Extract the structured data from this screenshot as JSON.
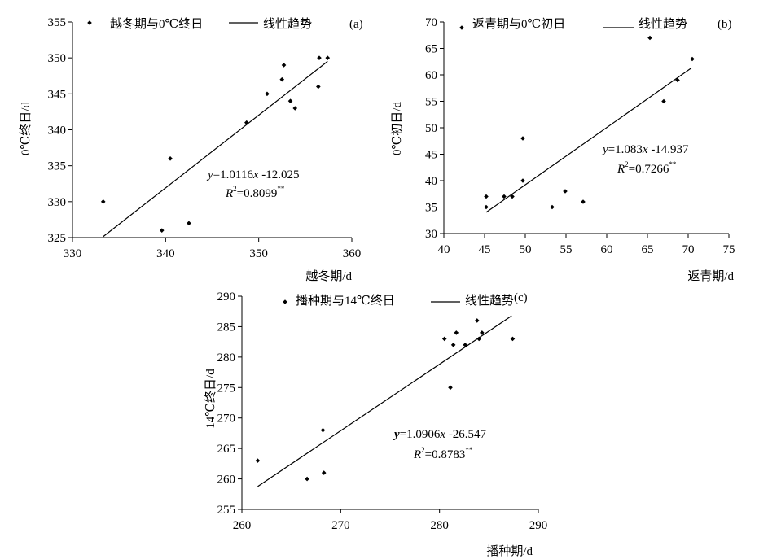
{
  "chart_data": [
    {
      "type": "scatter",
      "panel_label": "(a)",
      "xlabel": "越冬期/d",
      "ylabel": "0℃终日/d",
      "xlim": [
        330,
        360
      ],
      "ylim": [
        325,
        355
      ],
      "xticks": [
        330,
        340,
        350,
        360
      ],
      "yticks": [
        325,
        330,
        335,
        340,
        345,
        350,
        355
      ],
      "legend": {
        "placement": "top",
        "points": "越冬期与0℃终日",
        "trend": "线性趋势"
      },
      "equation": {
        "y": "y",
        "rest": "=1.0116",
        "x": "x",
        "tail": " -12.025"
      },
      "r2": {
        "r": "R",
        "sup2": "2",
        "val": "=0.8099",
        "stars": "**"
      },
      "trend": {
        "slope": 1.0116,
        "intercept": -12.025,
        "x_range": [
          333.3,
          357.4
        ]
      },
      "points": [
        [
          333.3,
          330
        ],
        [
          339.6,
          326
        ],
        [
          340.5,
          336
        ],
        [
          342.5,
          327
        ],
        [
          348.7,
          341
        ],
        [
          350.9,
          345
        ],
        [
          352.5,
          347
        ],
        [
          352.7,
          349
        ],
        [
          353.4,
          344
        ],
        [
          353.9,
          343
        ],
        [
          356.4,
          346
        ],
        [
          356.5,
          350
        ],
        [
          357.4,
          350
        ]
      ]
    },
    {
      "type": "scatter",
      "panel_label": "(b)",
      "xlabel": "返青期/d",
      "ylabel": "0℃初日/d",
      "xlim": [
        40,
        75
      ],
      "ylim": [
        30,
        70
      ],
      "xticks": [
        40,
        45,
        50,
        55,
        60,
        65,
        70,
        75
      ],
      "yticks": [
        30,
        35,
        40,
        45,
        50,
        55,
        60,
        65,
        70
      ],
      "legend": {
        "placement": "top",
        "points": "返青期与0℃初日",
        "trend": "线性趋势"
      },
      "equation": {
        "y": "y",
        "rest": "=1.083",
        "x": "x",
        "tail": " -14.937"
      },
      "r2": {
        "r": "R",
        "sup2": "2",
        "val": "=0.7266",
        "stars": "**"
      },
      "trend": {
        "slope": 1.083,
        "intercept": -14.937,
        "x_range": [
          45.2,
          70.4
        ]
      },
      "points": [
        [
          45.2,
          35
        ],
        [
          45.2,
          37
        ],
        [
          47.4,
          37
        ],
        [
          48.4,
          37
        ],
        [
          49.7,
          48
        ],
        [
          49.7,
          40
        ],
        [
          53.3,
          35
        ],
        [
          54.9,
          38
        ],
        [
          57.1,
          36
        ],
        [
          65.3,
          67
        ],
        [
          67.0,
          55
        ],
        [
          68.7,
          59
        ],
        [
          70.5,
          63
        ]
      ]
    },
    {
      "type": "scatter",
      "panel_label": "(c)",
      "xlabel": "播种期/d",
      "ylabel": "14℃终日/d",
      "xlim": [
        260,
        290
      ],
      "ylim": [
        255,
        290
      ],
      "xticks": [
        260,
        270,
        280,
        290
      ],
      "yticks": [
        255,
        260,
        265,
        270,
        275,
        280,
        285,
        290
      ],
      "legend": {
        "placement": "top",
        "points": "播种期与14℃终日",
        "trend": "线性趋势"
      },
      "equation": {
        "y": "y",
        "rest": "=1.0906",
        "x": "x",
        "tail": " -26.547"
      },
      "r2": {
        "r": "R",
        "sup2": "2",
        "val": "=0.8783",
        "stars": "**"
      },
      "trend": {
        "slope": 1.0906,
        "intercept": -26.547,
        "x_range": [
          261.6,
          287.3
        ]
      },
      "points": [
        [
          261.6,
          263
        ],
        [
          266.6,
          260
        ],
        [
          268.2,
          268
        ],
        [
          268.3,
          261
        ],
        [
          280.5,
          283
        ],
        [
          281.1,
          275
        ],
        [
          281.4,
          282
        ],
        [
          281.7,
          284
        ],
        [
          282.6,
          282
        ],
        [
          283.8,
          286
        ],
        [
          284.0,
          283
        ],
        [
          284.3,
          284
        ],
        [
          287.4,
          283
        ]
      ]
    }
  ]
}
